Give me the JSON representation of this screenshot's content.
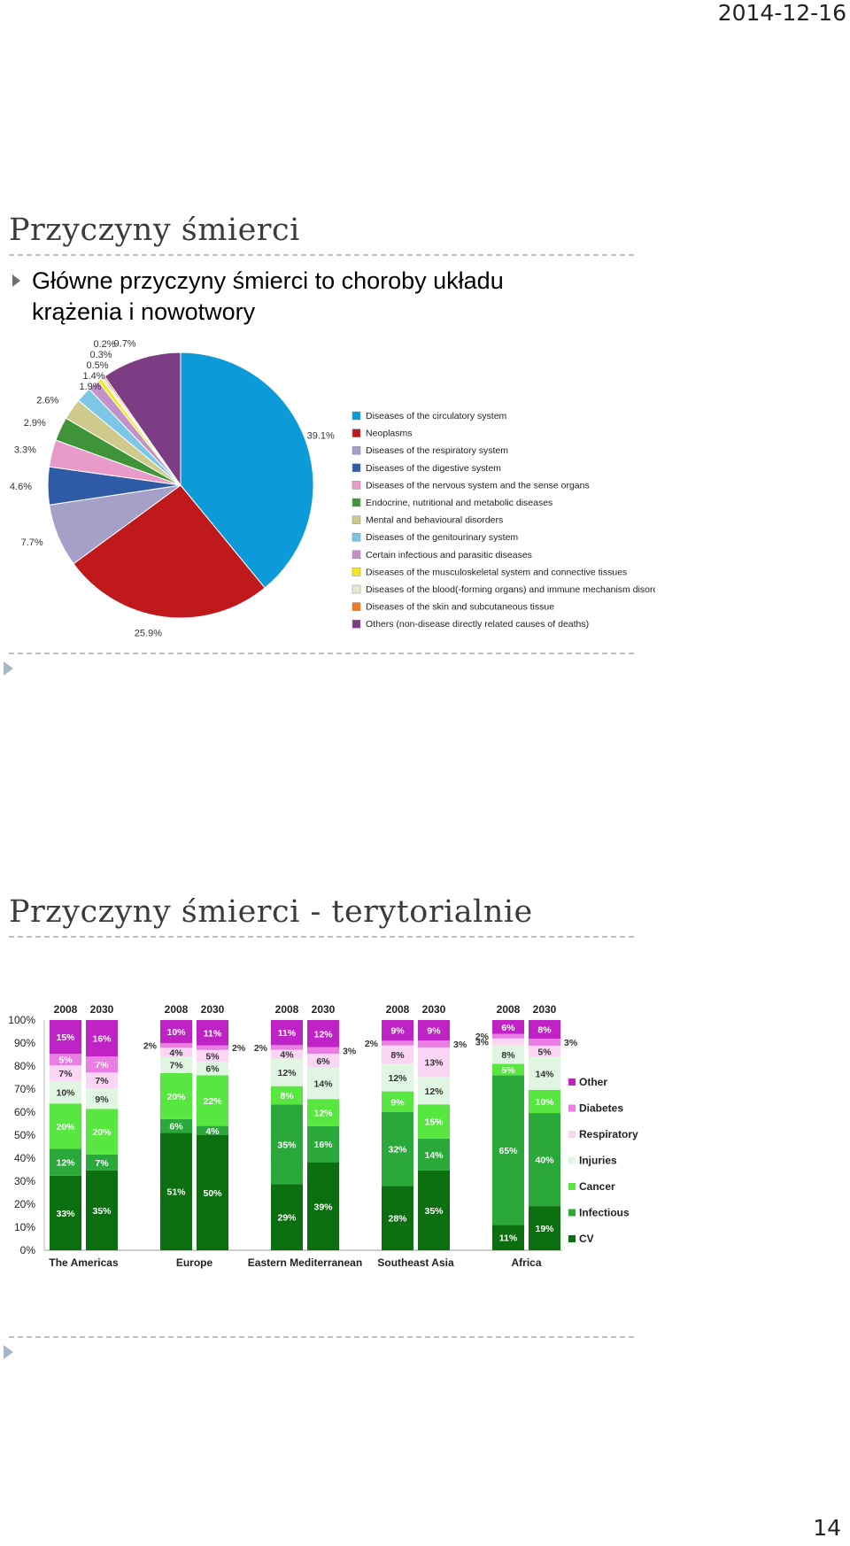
{
  "header": {
    "date": "2014-12-16"
  },
  "slide1": {
    "title": "Przyczyny śmierci",
    "bullet": "Główne przyczyny śmierci to choroby układu krążenia i nowotwory"
  },
  "slide2": {
    "title": "Przyczyny śmierci - terytorialnie"
  },
  "footer": {
    "page_number": "14"
  },
  "chart_data": [
    {
      "type": "pie",
      "slices": [
        {
          "label": "Diseases of the circulatory system",
          "value": 39.1,
          "value_label": "39.1%",
          "color": "#0c9ad8"
        },
        {
          "label": "Neoplasms",
          "value": 25.9,
          "value_label": "25.9%",
          "color": "#c0191b"
        },
        {
          "label": "Diseases of the respiratory system",
          "value": 7.7,
          "value_label": "7.7%",
          "color": "#a4a0c8"
        },
        {
          "label": "Diseases of the digestive system",
          "value": 4.6,
          "value_label": "4.6%",
          "color": "#2f5aa6"
        },
        {
          "label": "Diseases of the nervous system and the sense organs",
          "value": 3.3,
          "value_label": "3.3%",
          "color": "#e89bc9"
        },
        {
          "label": "Endocrine, nutritional and metabolic diseases",
          "value": 2.9,
          "value_label": "2.9%",
          "color": "#3f9439"
        },
        {
          "label": "Mental and behavioural disorders",
          "value": 2.6,
          "value_label": "2.6%",
          "color": "#cfc98c"
        },
        {
          "label": "Diseases of the genitourinary system",
          "value": 1.9,
          "value_label": "1.9%",
          "color": "#7cc6e6"
        },
        {
          "label": "Certain infectious and parasitic diseases",
          "value": 1.4,
          "value_label": "1.4%",
          "color": "#c392c8"
        },
        {
          "label": "Diseases of the musculoskeletal system and connective tissues",
          "value": 0.5,
          "value_label": "0.5%",
          "color": "#f7e61a"
        },
        {
          "label": "Diseases of the blood(-forming organs) and immune mechanism disorders",
          "value": 0.3,
          "value_label": "0.3%",
          "color": "#e6ecd3"
        },
        {
          "label": "Diseases of the skin and subcutaneous tissue",
          "value": 0.2,
          "value_label": "0.2%",
          "color": "#ee7a22"
        },
        {
          "label": "Others (non-disease directly related causes of deaths)",
          "value": 9.7,
          "value_label": "9.7%",
          "color": "#7d3d84"
        }
      ],
      "legend_position": "right"
    },
    {
      "type": "bar",
      "stacked": true,
      "y_ticks": [
        "0%",
        "10%",
        "20%",
        "30%",
        "40%",
        "50%",
        "60%",
        "70%",
        "80%",
        "90%",
        "100%"
      ],
      "ylim": [
        0,
        100
      ],
      "legend_position": "right",
      "legend_order": [
        "Other",
        "Diabetes",
        "Respiratory",
        "Injuries",
        "Cancer",
        "Infectious",
        "CV"
      ],
      "series_colors": {
        "CV": "#0b6e0f",
        "Infectious": "#2aa83a",
        "Cancer": "#58e640",
        "Injuries": "#e0f6e2",
        "Respiratory": "#fbd5f4",
        "Diabetes": "#ea7ee2",
        "Other": "#bf23c6"
      },
      "groups": [
        {
          "region": "The Americas",
          "bars": [
            {
              "year": "2008",
              "segments": [
                {
                  "series": "CV",
                  "value": 33,
                  "label": "33%"
                },
                {
                  "series": "Infectious",
                  "value": 12,
                  "label": "12%"
                },
                {
                  "series": "Cancer",
                  "value": 20,
                  "label": "20%"
                },
                {
                  "series": "Injuries",
                  "value": 10,
                  "label": "10%"
                },
                {
                  "series": "Respiratory",
                  "value": 7,
                  "label": "7%"
                },
                {
                  "series": "Diabetes",
                  "value": 5,
                  "label": "5%"
                },
                {
                  "series": "Other",
                  "value": 15,
                  "label": "15%"
                }
              ]
            },
            {
              "year": "2030",
              "segments": [
                {
                  "series": "CV",
                  "value": 35,
                  "label": "35%"
                },
                {
                  "series": "Infectious",
                  "value": 7,
                  "label": "7%"
                },
                {
                  "series": "Cancer",
                  "value": 20,
                  "label": "20%"
                },
                {
                  "series": "Injuries",
                  "value": 9,
                  "label": "9%"
                },
                {
                  "series": "Respiratory",
                  "value": 7,
                  "label": "7%"
                },
                {
                  "series": "Diabetes",
                  "value": 7,
                  "label": "7%"
                },
                {
                  "series": "Other",
                  "value": 16,
                  "label": "16%"
                }
              ]
            }
          ]
        },
        {
          "region": "Europe",
          "bars": [
            {
              "year": "2008",
              "segments": [
                {
                  "series": "CV",
                  "value": 51,
                  "label": "51%"
                },
                {
                  "series": "Infectious",
                  "value": 6,
                  "label": "6%"
                },
                {
                  "series": "Cancer",
                  "value": 20,
                  "label": "20%"
                },
                {
                  "series": "Injuries",
                  "value": 7,
                  "label": "7%"
                },
                {
                  "series": "Respiratory",
                  "value": 4,
                  "label": "4%"
                },
                {
                  "series": "Diabetes",
                  "value": 2,
                  "label": "2%"
                },
                {
                  "series": "Other",
                  "value": 10,
                  "label": "10%"
                }
              ]
            },
            {
              "year": "2030",
              "segments": [
                {
                  "series": "CV",
                  "value": 50,
                  "label": "50%"
                },
                {
                  "series": "Infectious",
                  "value": 4,
                  "label": "4%"
                },
                {
                  "series": "Cancer",
                  "value": 22,
                  "label": "22%"
                },
                {
                  "series": "Injuries",
                  "value": 6,
                  "label": "6%"
                },
                {
                  "series": "Respiratory",
                  "value": 5,
                  "label": "5%"
                },
                {
                  "series": "Diabetes",
                  "value": 2,
                  "label": "2%"
                },
                {
                  "series": "Other",
                  "value": 11,
                  "label": "11%"
                }
              ]
            }
          ]
        },
        {
          "region": "Eastern Mediterranean",
          "bars": [
            {
              "year": "2008",
              "segments": [
                {
                  "series": "CV",
                  "value": 29,
                  "label": "29%"
                },
                {
                  "series": "Infectious",
                  "value": 35,
                  "label": "35%"
                },
                {
                  "series": "Cancer",
                  "value": 8,
                  "label": "8%"
                },
                {
                  "series": "Injuries",
                  "value": 12,
                  "label": "12%"
                },
                {
                  "series": "Respiratory",
                  "value": 4,
                  "label": "4%"
                },
                {
                  "series": "Diabetes",
                  "value": 2,
                  "label": "2%"
                },
                {
                  "series": "Other",
                  "value": 11,
                  "label": "11%"
                }
              ]
            },
            {
              "year": "2030",
              "segments": [
                {
                  "series": "CV",
                  "value": 39,
                  "label": "39%"
                },
                {
                  "series": "Infectious",
                  "value": 16,
                  "label": "16%"
                },
                {
                  "series": "Cancer",
                  "value": 12,
                  "label": "12%"
                },
                {
                  "series": "Injuries",
                  "value": 14,
                  "label": "14%"
                },
                {
                  "series": "Respiratory",
                  "value": 6,
                  "label": "6%"
                },
                {
                  "series": "Diabetes",
                  "value": 3,
                  "label": "3%"
                },
                {
                  "series": "Other",
                  "value": 12,
                  "label": "12%"
                }
              ]
            }
          ]
        },
        {
          "region": "Southeast Asia",
          "bars": [
            {
              "year": "2008",
              "segments": [
                {
                  "series": "CV",
                  "value": 28,
                  "label": "28%"
                },
                {
                  "series": "Infectious",
                  "value": 32,
                  "label": "32%"
                },
                {
                  "series": "Cancer",
                  "value": 9,
                  "label": "9%"
                },
                {
                  "series": "Injuries",
                  "value": 12,
                  "label": "12%"
                },
                {
                  "series": "Respiratory",
                  "value": 8,
                  "label": "8%"
                },
                {
                  "series": "Diabetes",
                  "value": 2,
                  "label": "2%"
                },
                {
                  "series": "Other",
                  "value": 9,
                  "label": "9%"
                }
              ]
            },
            {
              "year": "2030",
              "segments": [
                {
                  "series": "CV",
                  "value": 35,
                  "label": "35%"
                },
                {
                  "series": "Infectious",
                  "value": 14,
                  "label": "14%"
                },
                {
                  "series": "Cancer",
                  "value": 15,
                  "label": "15%"
                },
                {
                  "series": "Injuries",
                  "value": 12,
                  "label": "12%"
                },
                {
                  "series": "Respiratory",
                  "value": 13,
                  "label": "13%"
                },
                {
                  "series": "Diabetes",
                  "value": 3,
                  "label": "3%"
                },
                {
                  "series": "Other",
                  "value": 9,
                  "label": "9%"
                }
              ]
            }
          ]
        },
        {
          "region": "Africa",
          "bars": [
            {
              "year": "2008",
              "segments": [
                {
                  "series": "CV",
                  "value": 11,
                  "label": "11%"
                },
                {
                  "series": "Infectious",
                  "value": 65,
                  "label": "65%"
                },
                {
                  "series": "Cancer",
                  "value": 5,
                  "label": "5%"
                },
                {
                  "series": "Injuries",
                  "value": 8,
                  "label": "8%"
                },
                {
                  "series": "Respiratory",
                  "value": 3,
                  "label": "3%"
                },
                {
                  "series": "Diabetes",
                  "value": 2,
                  "label": "2%"
                },
                {
                  "series": "Other",
                  "value": 6,
                  "label": "6%"
                }
              ]
            },
            {
              "year": "2030",
              "segments": [
                {
                  "series": "CV",
                  "value": 19,
                  "label": "19%"
                },
                {
                  "series": "Infectious",
                  "value": 40,
                  "label": "40%"
                },
                {
                  "series": "Cancer",
                  "value": 10,
                  "label": "10%"
                },
                {
                  "series": "Injuries",
                  "value": 14,
                  "label": "14%"
                },
                {
                  "series": "Respiratory",
                  "value": 5,
                  "label": "5%"
                },
                {
                  "series": "Diabetes",
                  "value": 3,
                  "label": "3%"
                },
                {
                  "series": "Other",
                  "value": 8,
                  "label": "8%"
                }
              ]
            }
          ]
        }
      ]
    }
  ]
}
